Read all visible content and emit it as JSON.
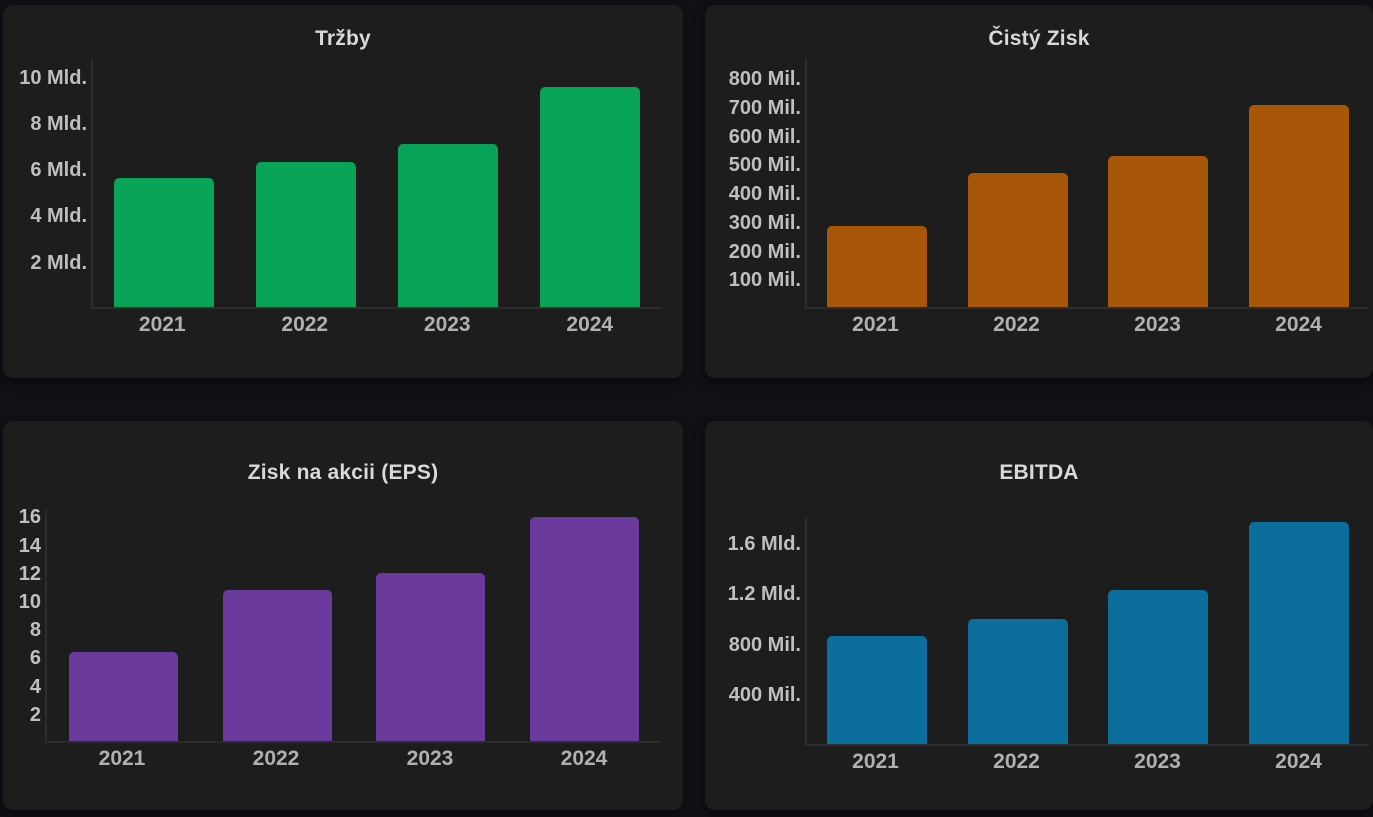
{
  "page": {
    "background_color": "#0f1117",
    "panel_color": "#1d1d1d",
    "axis_line_color": "#2c2c2e",
    "title_color": "#d7d9db",
    "tick_label_color": "#bdbfc1"
  },
  "chart_data": [
    {
      "type": "bar",
      "title": "Tržby",
      "categories": [
        "2021",
        "2022",
        "2023",
        "2024"
      ],
      "values": [
        5.6,
        6.3,
        7.1,
        9.6
      ],
      "unit": "Mld.",
      "bar_color": "#09a358",
      "yticks": [
        {
          "v": 2,
          "label": "2 Mld."
        },
        {
          "v": 4,
          "label": "4 Mld."
        },
        {
          "v": 6,
          "label": "6 Mld."
        },
        {
          "v": 8,
          "label": "8 Mld."
        },
        {
          "v": 10,
          "label": "10 Mld."
        }
      ],
      "ylim": [
        0,
        10.8
      ],
      "grid": false,
      "legend": false
    },
    {
      "type": "bar",
      "title": "Čistý Zisk",
      "categories": [
        "2021",
        "2022",
        "2023",
        "2024"
      ],
      "values": [
        285,
        470,
        530,
        710
      ],
      "unit": "Mil.",
      "bar_color": "#a85607",
      "yticks": [
        {
          "v": 100,
          "label": "100 Mil."
        },
        {
          "v": 200,
          "label": "200 Mil."
        },
        {
          "v": 300,
          "label": "300 Mil."
        },
        {
          "v": 400,
          "label": "400 Mil."
        },
        {
          "v": 500,
          "label": "500 Mil."
        },
        {
          "v": 600,
          "label": "600 Mil."
        },
        {
          "v": 700,
          "label": "700 Mil."
        },
        {
          "v": 800,
          "label": "800 Mil."
        }
      ],
      "ylim": [
        0,
        870
      ],
      "grid": false,
      "legend": false
    },
    {
      "type": "bar",
      "title": "Zisk na akcii (EPS)",
      "categories": [
        "2021",
        "2022",
        "2023",
        "2024"
      ],
      "values": [
        6.4,
        10.8,
        12,
        16
      ],
      "unit": "",
      "bar_color": "#6a3b9d",
      "yticks": [
        {
          "v": 2,
          "label": "2"
        },
        {
          "v": 4,
          "label": "4"
        },
        {
          "v": 6,
          "label": "6"
        },
        {
          "v": 8,
          "label": "8"
        },
        {
          "v": 10,
          "label": "10"
        },
        {
          "v": 12,
          "label": "12"
        },
        {
          "v": 14,
          "label": "14"
        },
        {
          "v": 16,
          "label": "16"
        }
      ],
      "ylim": [
        0,
        16.6
      ],
      "grid": false,
      "legend": false
    },
    {
      "type": "bar",
      "title": "EBITDA",
      "categories": [
        "2021",
        "2022",
        "2023",
        "2024"
      ],
      "values": [
        860,
        1000,
        1230,
        1770
      ],
      "unit": "Mil.",
      "bar_color": "#0c6e9c",
      "yticks": [
        {
          "v": 400,
          "label": "400 Mil."
        },
        {
          "v": 800,
          "label": "800 Mil."
        },
        {
          "v": 1200,
          "label": "1.2 Mld."
        },
        {
          "v": 1600,
          "label": "1.6 Mld."
        }
      ],
      "ylim": [
        0,
        1810
      ],
      "grid": false,
      "legend": false
    }
  ]
}
